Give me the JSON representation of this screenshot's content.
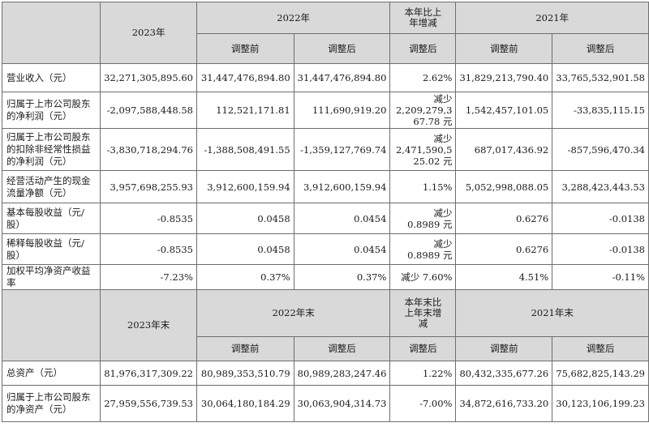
{
  "header_top": {
    "y2023": "2023年",
    "y2022": "2022年",
    "change": "本年比上\n年增减",
    "y2021": "2021年",
    "before": "调整前",
    "after": "调整后",
    "change_after": "调整后"
  },
  "header_bottom": {
    "y2023": "2023年末",
    "y2022": "2022年末",
    "change": "本年末比\n上年末增\n减",
    "y2021": "2021年末",
    "before": "调整前",
    "after": "调整后",
    "change_after": "调整后"
  },
  "rows_top": [
    {
      "label": "营业收入（元）",
      "v2023": "32,271,305,895.60",
      "v2022_before": "31,447,476,894.80",
      "v2022_after": "31,447,476,894.80",
      "change": "2.62%",
      "v2021_before": "31,829,213,790.40",
      "v2021_after": "33,765,532,901.58"
    },
    {
      "label": "归属于上市公司股东的净利润（元）",
      "v2023": "-2,097,588,448.58",
      "v2022_before": "112,521,171.81",
      "v2022_after": "111,690,919.20",
      "change": "减少\n2,209,279,3\n67.78 元",
      "v2021_before": "1,542,457,101.05",
      "v2021_after": "-33,835,115.15"
    },
    {
      "label": "归属于上市公司股东的扣除非经常性损益的净利润（元）",
      "v2023": "-3,830,718,294.76",
      "v2022_before": "-1,388,508,491.55",
      "v2022_after": "-1,359,127,769.74",
      "change": "减少\n2,471,590,5\n25.02 元",
      "v2021_before": "687,017,436.92",
      "v2021_after": "-857,596,470.34"
    },
    {
      "label": "经营活动产生的现金流量净额（元）",
      "v2023": "3,957,698,255.93",
      "v2022_before": "3,912,600,159.94",
      "v2022_after": "3,912,600,159.94",
      "change": "1.15%",
      "v2021_before": "5,052,998,088.05",
      "v2021_after": "3,288,423,443.53"
    },
    {
      "label": "基本每股收益（元/股）",
      "v2023": "-0.8535",
      "v2022_before": "0.0458",
      "v2022_after": "0.0454",
      "change": "减少\n0.8989 元",
      "v2021_before": "0.6276",
      "v2021_after": "-0.0138"
    },
    {
      "label": "稀释每股收益（元/股）",
      "v2023": "-0.8535",
      "v2022_before": "0.0458",
      "v2022_after": "0.0454",
      "change": "减少\n0.8989 元",
      "v2021_before": "0.6276",
      "v2021_after": "-0.0138"
    },
    {
      "label": "加权平均净资产收益率",
      "v2023": "-7.23%",
      "v2022_before": "0.37%",
      "v2022_after": "0.37%",
      "change": "减少 7.60%",
      "v2021_before": "4.51%",
      "v2021_after": "-0.11%"
    }
  ],
  "rows_bottom": [
    {
      "label": "总资产（元）",
      "v2023": "81,976,317,309.22",
      "v2022_before": "80,989,353,510.79",
      "v2022_after": "80,989,283,247.46",
      "change": "1.22%",
      "v2021_before": "80,432,335,677.26",
      "v2021_after": "75,682,825,143.29"
    },
    {
      "label": "归属于上市公司股东的净资产（元）",
      "v2023": "27,959,556,739.53",
      "v2022_before": "30,064,180,184.29",
      "v2022_after": "30,063,904,314.73",
      "change": "-7.00%",
      "v2021_before": "34,872,616,733.20",
      "v2021_after": "30,123,106,199.23"
    }
  ]
}
